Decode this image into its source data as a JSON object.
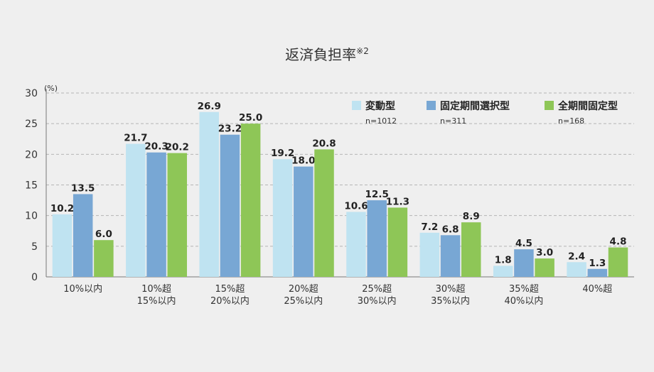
{
  "chart_data": {
    "type": "bar",
    "title": "返済負担率",
    "title_suffix": "※2",
    "unit_label": "(%)",
    "ylim": [
      0,
      30
    ],
    "yticks": [
      0,
      5,
      10,
      15,
      20,
      25,
      30
    ],
    "grid": true,
    "legend_position": "top-right",
    "categories": [
      [
        "10%以内"
      ],
      [
        "10%超",
        "15%以内"
      ],
      [
        "15%超",
        "20%以内"
      ],
      [
        "20%超",
        "25%以内"
      ],
      [
        "25%超",
        "30%以内"
      ],
      [
        "30%超",
        "35%以内"
      ],
      [
        "35%超",
        "40%以内"
      ],
      [
        "40%超"
      ]
    ],
    "series": [
      {
        "name": "変動型",
        "n": "n=1012",
        "color": "#bfe3f1",
        "values": [
          10.2,
          21.7,
          26.9,
          19.2,
          10.6,
          7.2,
          1.8,
          2.4
        ]
      },
      {
        "name": "固定期間選択型",
        "n": "n=311",
        "color": "#78a7d4",
        "values": [
          13.5,
          20.3,
          23.2,
          18.0,
          12.5,
          6.8,
          4.5,
          1.3
        ]
      },
      {
        "name": "全期間固定型",
        "n": "n=168",
        "color": "#8ec657",
        "values": [
          6.0,
          20.2,
          25.0,
          20.8,
          11.3,
          8.9,
          3.0,
          4.8
        ]
      }
    ]
  }
}
